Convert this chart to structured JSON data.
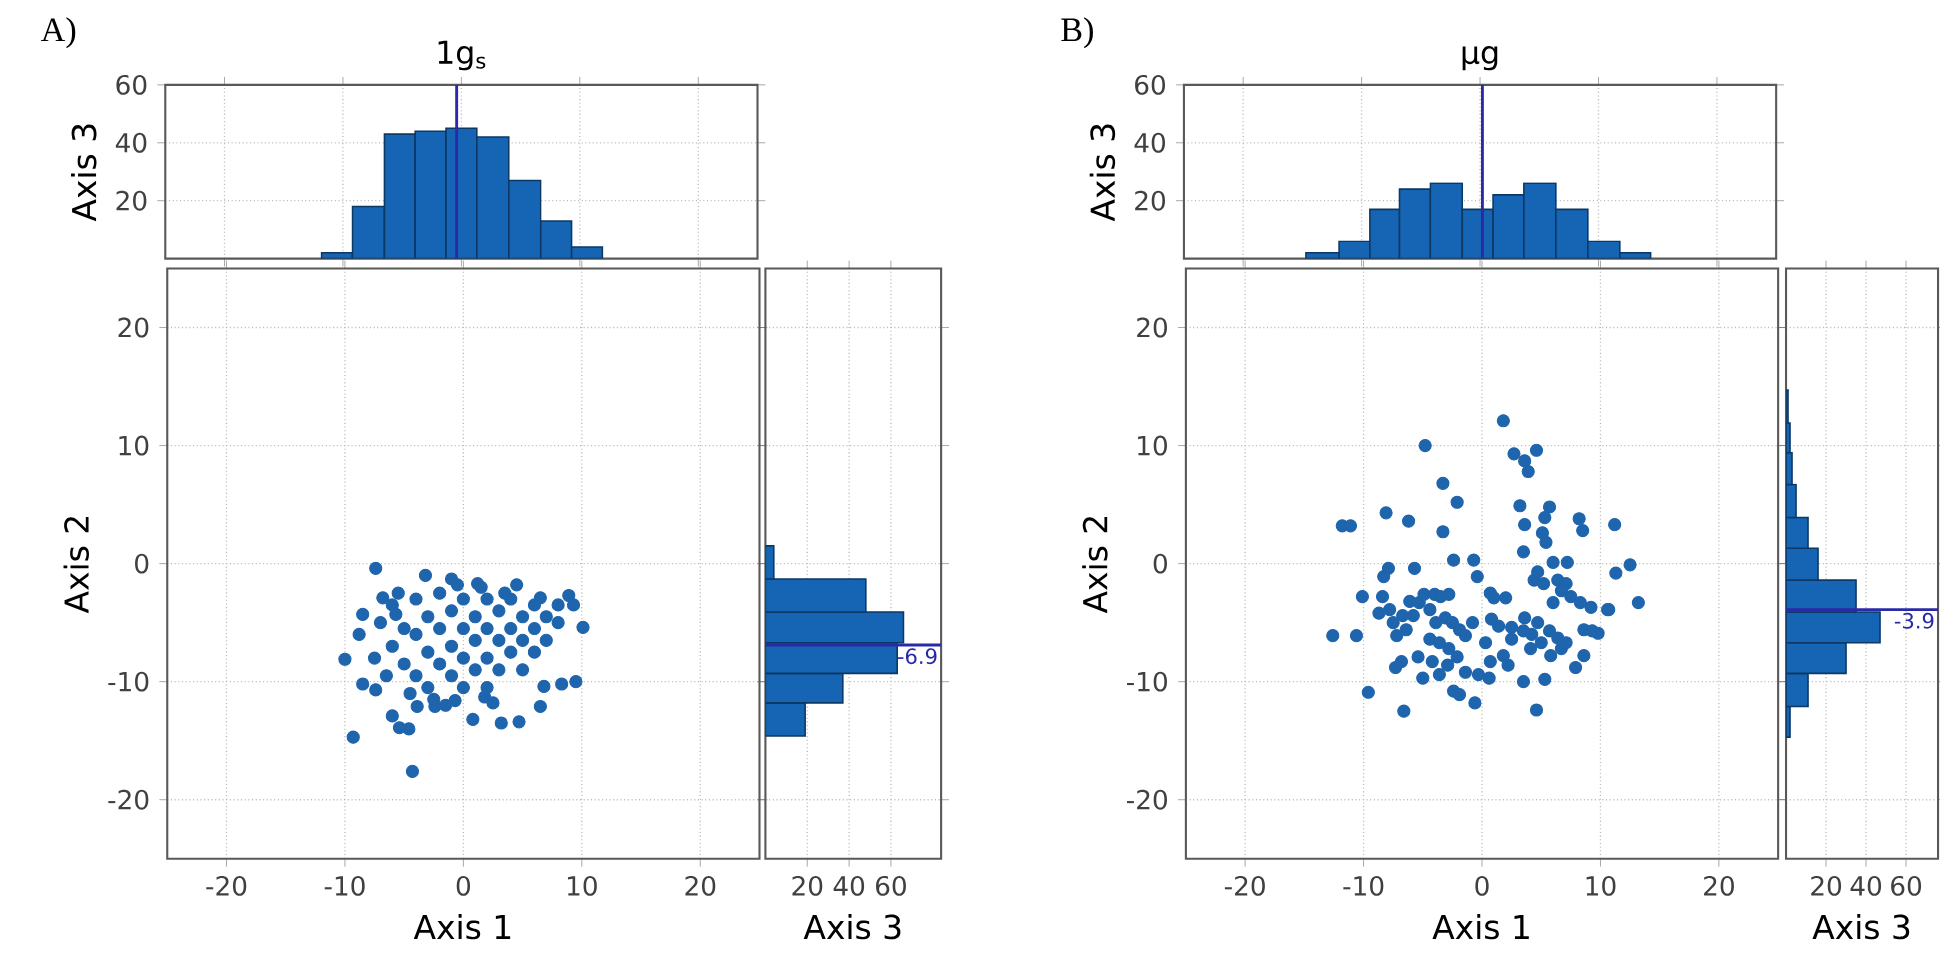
{
  "chart_data": [
    {
      "type": "histogram",
      "title": "1g$_{s}$",
      "annotations": [
        "A)"
      ],
      "ylabel": "Axis 3",
      "bins": [
        -11.8,
        -9.2,
        -6.5,
        -3.9,
        -1.3,
        1.3,
        4.0,
        6.7,
        9.3,
        11.9
      ],
      "values": [
        2,
        18,
        43,
        44,
        45,
        42,
        27,
        13,
        4
      ],
      "color": "#1565b4",
      "xlim": [
        -25,
        25
      ],
      "ylim": [
        0,
        60
      ],
      "xticks": [
        -20,
        -10,
        0,
        10,
        20
      ],
      "yticks": [
        20,
        40,
        60
      ],
      "tick_labels": "y",
      "grid": true,
      "ref_lines": [
        {
          "axis": "x",
          "value": -0.4,
          "color": "#2a2aa8"
        }
      ]
    },
    {
      "type": "scatter",
      "xlabel": "Axis 1",
      "ylabel": "Axis 2",
      "color": "#1f65ad",
      "marker": "circle",
      "xlim": [
        -25,
        25
      ],
      "ylim": [
        -25,
        25
      ],
      "xticks": [
        -20,
        -10,
        0,
        10,
        20
      ],
      "yticks": [
        -20,
        -10,
        0,
        10,
        20
      ],
      "grid": true,
      "x": [
        -10,
        -9.3,
        -4.3,
        -7.4,
        10.1,
        9.5,
        4.7,
        3.2,
        0.8,
        6.5,
        6.8,
        8.3,
        8.9,
        9.3,
        -6,
        -4.6,
        -5.4,
        -8.5,
        -7.4,
        -3.9,
        -2.4,
        -0.7,
        1.8,
        -1,
        -3.2,
        1.2,
        4.5,
        6.5,
        -8.5,
        -8.8,
        -6.8,
        -5.7,
        -7,
        -6,
        -6,
        -5,
        -5,
        -4,
        -4,
        -4,
        -3,
        -3,
        -3,
        -2,
        -2,
        -2,
        -1,
        -1,
        -1,
        0,
        0,
        0,
        0,
        1,
        1,
        1,
        2,
        2,
        2,
        2,
        3,
        3,
        3,
        4,
        4,
        4,
        5,
        5,
        5,
        6,
        6,
        6,
        7,
        7,
        8,
        8,
        -7.5,
        -6.5,
        -5.5,
        -4.5,
        -2.5,
        1.5,
        3.5,
        -0.5,
        -1.5,
        2.5
      ],
      "values": [
        -8.1,
        -14.7,
        -17.6,
        -0.4,
        -5.4,
        -10,
        -13.4,
        -13.5,
        -13.2,
        -12.1,
        -10.4,
        -10.2,
        -2.7,
        -3.5,
        -12.9,
        -14,
        -13.9,
        -10.2,
        -10.7,
        -12.1,
        -12.1,
        -11.6,
        -11.3,
        -1.3,
        -1,
        -1.7,
        -1.8,
        -2.9,
        -4.3,
        -6,
        -2.9,
        -4.3,
        -5,
        -3.5,
        -7,
        -5.5,
        -8.5,
        -3,
        -6,
        -9.5,
        -4.5,
        -7.5,
        -10.5,
        -2.5,
        -5.5,
        -8.5,
        -4,
        -7,
        -9.5,
        -3,
        -5.5,
        -8,
        -10.5,
        -4.5,
        -6.5,
        -9,
        -3,
        -5.5,
        -8,
        -10.5,
        -4,
        -6.5,
        -9,
        -3,
        -5.5,
        -7.5,
        -4.5,
        -6.5,
        -9,
        -3.5,
        -5.5,
        -7.5,
        -4.5,
        -6.5,
        -5,
        -3.5,
        -8,
        -9.5,
        -2.5,
        -11,
        -11.5,
        -2,
        -2.5,
        -1.8,
        -12,
        -11.8
      ]
    },
    {
      "type": "histogram",
      "orientation": "horizontal",
      "xlabel": "Axis 3",
      "bins": [
        -14.6,
        -11.8,
        -9.3,
        -6.7,
        -4.1,
        -1.3,
        1.5
      ],
      "values": [
        19,
        37,
        63,
        66,
        48,
        4
      ],
      "color": "#1565b4",
      "xlim": [
        0,
        84
      ],
      "ylim": [
        -25,
        25
      ],
      "xticks": [
        20,
        40,
        60
      ],
      "yticks": [
        -20,
        -10,
        0,
        10,
        20
      ],
      "tick_labels": "x",
      "grid": true,
      "ref_lines": [
        {
          "axis": "y",
          "value": -6.9,
          "label": "-6.9",
          "color": "#2a2aa8"
        }
      ]
    },
    {
      "type": "histogram",
      "title": "μg",
      "annotations": [
        "B)"
      ],
      "ylabel": "Axis 3",
      "bins": [
        -14.7,
        -11.9,
        -9.3,
        -6.8,
        -4.2,
        -1.5,
        1.1,
        3.7,
        6.4,
        9.1,
        11.8,
        14.4
      ],
      "values": [
        2,
        6,
        17,
        24,
        26,
        17,
        22,
        26,
        17,
        6,
        2
      ],
      "color": "#1565b4",
      "xlim": [
        -25,
        25
      ],
      "ylim": [
        0,
        60
      ],
      "xticks": [
        -20,
        -10,
        0,
        10,
        20
      ],
      "yticks": [
        20,
        40,
        60
      ],
      "tick_labels": "y",
      "grid": true,
      "ref_lines": [
        {
          "axis": "x",
          "value": 0.2,
          "color": "#2a2aa8"
        }
      ]
    },
    {
      "type": "scatter",
      "xlabel": "Axis 1",
      "ylabel": "Axis 2",
      "color": "#1f65ad",
      "marker": "circle",
      "xlim": [
        -25,
        25
      ],
      "ylim": [
        -25,
        25
      ],
      "xticks": [
        -20,
        -10,
        0,
        10,
        20
      ],
      "yticks": [
        -20,
        -10,
        0,
        10,
        20
      ],
      "grid": true,
      "x": [
        1.8,
        -4.8,
        2.7,
        4.6,
        3.6,
        3.9,
        -3.3,
        -2.1,
        -11.8,
        -11.1,
        -8.1,
        -6.2,
        -3.3,
        3.2,
        3.6,
        5.7,
        5.3,
        5.1,
        5.4,
        8.2,
        8.5,
        11.2,
        3.5,
        12.5,
        11.3,
        13.2,
        10.7,
        6,
        7.2,
        -2.4,
        -0.7,
        -0.4,
        -5.7,
        -7.9,
        -8.3,
        -10.1,
        -12.6,
        -10.6,
        -9.6,
        -6.6,
        4.6,
        -0.6,
        -2.4,
        -1.9,
        3.5,
        5.3,
        7.9,
        -7.3,
        -6.8,
        -5,
        -3.6,
        -5.4,
        -4.2,
        -2.9,
        -2.1,
        -1.4,
        -0.3,
        0.6,
        0.7,
        0.3,
        1.8,
        2.2,
        -0.8,
        0.7,
        1,
        2,
        1.4,
        2.5,
        3.5,
        3.6,
        4.2,
        4.7,
        5,
        5.7,
        6.4,
        6.7,
        7.1,
        5.8,
        4.4,
        4.7,
        5.2,
        6.4,
        7.1,
        6.7,
        6,
        7.5,
        8.3,
        9.2,
        8.6,
        9.3,
        9.8,
        10.6,
        -8.4,
        -8.7,
        -7.8,
        -7.5,
        -7.2,
        -6.1,
        -5.8,
        -5.3,
        -4.9,
        -4.4,
        -4,
        -3.5,
        -2.8,
        -3.9,
        -3.1,
        -2.5,
        -1.9,
        -1.4,
        -4.4,
        -3.6,
        -2.8,
        -6.4,
        -6.7,
        0.8,
        2.5,
        4.1,
        8.6
      ],
      "values": [
        12.1,
        10,
        9.3,
        9.6,
        8.7,
        7.8,
        6.8,
        5.2,
        3.2,
        3.2,
        4.3,
        3.6,
        2.7,
        4.9,
        3.3,
        4.8,
        3.9,
        2.6,
        1.8,
        3.8,
        2.8,
        3.3,
        1,
        -0.1,
        -0.8,
        -3.3,
        -3.9,
        0.1,
        0.1,
        0.3,
        0.3,
        -1.1,
        -0.4,
        -0.4,
        -1.1,
        -2.8,
        -6.1,
        -6.1,
        -10.9,
        -12.5,
        -12.4,
        -11.8,
        -10.8,
        -11.1,
        -10,
        -9.8,
        -8.8,
        -8.8,
        -8.3,
        -9.7,
        -9.4,
        -7.9,
        -8.3,
        -8.6,
        -7.9,
        -9.2,
        -9.4,
        -9.7,
        -8.3,
        -6.7,
        -7.8,
        -8.6,
        -5,
        -2.5,
        -2.9,
        -2.9,
        -5.3,
        -5.4,
        -5.7,
        -4.6,
        -6,
        -5,
        -6.7,
        -5.7,
        -6.3,
        -7.2,
        -6.7,
        -7.8,
        -1.4,
        -0.7,
        -1.7,
        -1.4,
        -1.7,
        -2.3,
        -3.3,
        -2.8,
        -3.3,
        -3.7,
        -5.6,
        -5.7,
        -5.9,
        -3.9,
        -2.8,
        -4.2,
        -3.9,
        -5,
        -6.1,
        -3.2,
        -4.4,
        -3.3,
        -2.6,
        -3.9,
        -2.6,
        -2.8,
        -2.6,
        -5,
        -4.6,
        -5,
        -5.6,
        -6.1,
        -6.4,
        -6.7,
        -7.2,
        -5.6,
        -4.4,
        -4.7,
        -6.4,
        -7.2,
        -7.8
      ]
    },
    {
      "type": "histogram",
      "orientation": "horizontal",
      "xlabel": "Axis 3",
      "bins": [
        -14.7,
        -12.1,
        -9.3,
        -6.7,
        -4.1,
        -1.4,
        1.3,
        3.9,
        6.7,
        9.4,
        11.9,
        14.7
      ],
      "values": [
        2,
        11,
        30,
        47,
        35,
        16,
        11,
        5,
        3,
        2,
        1
      ],
      "color": "#1565b4",
      "xlim": [
        0,
        76
      ],
      "ylim": [
        -25,
        25
      ],
      "xticks": [
        20,
        40,
        60
      ],
      "yticks": [
        -20,
        -10,
        0,
        10,
        20
      ],
      "tick_labels": "x",
      "grid": true,
      "ref_lines": [
        {
          "axis": "y",
          "value": -3.9,
          "label": "-3.9",
          "color": "#2a2aa8"
        }
      ]
    }
  ]
}
